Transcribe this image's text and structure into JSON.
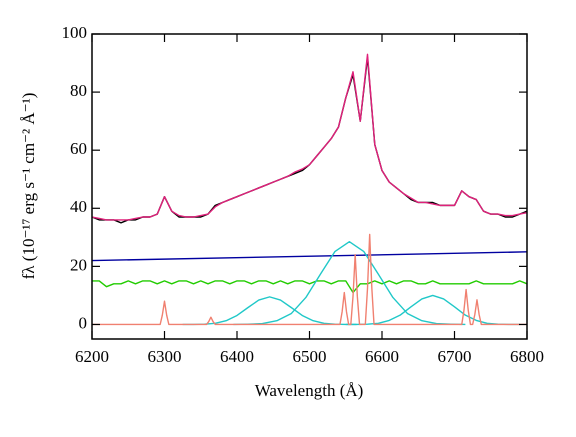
{
  "chart_data": {
    "type": "line",
    "xlabel": "Wavelength (Å)",
    "ylabel": "fλ (10⁻¹⁷ erg s⁻¹ cm⁻² Å⁻¹)",
    "xlim": [
      6200,
      6800
    ],
    "ylim": [
      -5,
      100
    ],
    "xticks": [
      6200,
      6300,
      6400,
      6500,
      6600,
      6700,
      6800
    ],
    "yticks": [
      0,
      20,
      40,
      60,
      80,
      100
    ],
    "x": [
      6200,
      6210,
      6220,
      6230,
      6240,
      6250,
      6260,
      6270,
      6280,
      6290,
      6300,
      6310,
      6320,
      6330,
      6340,
      6350,
      6360,
      6370,
      6380,
      6390,
      6400,
      6410,
      6420,
      6430,
      6440,
      6450,
      6460,
      6470,
      6480,
      6490,
      6500,
      6510,
      6520,
      6530,
      6540,
      6550,
      6560,
      6570,
      6580,
      6590,
      6600,
      6610,
      6620,
      6630,
      6640,
      6650,
      6660,
      6670,
      6680,
      6690,
      6700,
      6710,
      6720,
      6730,
      6740,
      6750,
      6760,
      6770,
      6780,
      6790,
      6800
    ],
    "series": [
      {
        "color": "#000000",
        "values": [
          37,
          36,
          36,
          36,
          35,
          36,
          36,
          37,
          37,
          38,
          44,
          39,
          37,
          37,
          37,
          37,
          38,
          41,
          42,
          43,
          44,
          45,
          46,
          47,
          48,
          49,
          50,
          51,
          52,
          53,
          55,
          58,
          61,
          64,
          68,
          78,
          86,
          70,
          92,
          62,
          53,
          49,
          47,
          45,
          43,
          42,
          42,
          42,
          41,
          41,
          41,
          46,
          44,
          43,
          39,
          38,
          38,
          37,
          37,
          38,
          39
        ]
      },
      {
        "color": "#e0207a",
        "values": [
          37,
          36.5,
          36,
          36,
          36,
          36,
          36.5,
          37,
          37,
          38,
          44,
          39,
          37.5,
          37,
          37,
          37.5,
          38,
          40.5,
          42,
          43,
          44,
          45,
          46,
          47,
          48,
          49,
          50,
          51,
          52.5,
          53.5,
          55,
          58,
          61,
          64,
          68,
          78,
          87,
          70,
          93,
          62,
          53,
          49,
          47,
          45,
          43.5,
          42,
          42,
          41.5,
          41,
          41,
          41,
          46,
          44,
          43,
          39,
          38,
          38,
          37.5,
          37.5,
          38,
          38.5
        ]
      },
      {
        "color": "#0000a0",
        "x": [
          6200,
          6800
        ],
        "values": [
          22,
          25
        ]
      },
      {
        "color": "#22cc00",
        "values": [
          15,
          15,
          13,
          14,
          14,
          15,
          14,
          15,
          15,
          14,
          15,
          14,
          15,
          15,
          14,
          15,
          14,
          15,
          15,
          14,
          15,
          15,
          14,
          15,
          15,
          14,
          15,
          14,
          15,
          15,
          14,
          15,
          15,
          14,
          15,
          15,
          11,
          14,
          14,
          15,
          14,
          15,
          14,
          15,
          15,
          14,
          14,
          15,
          14,
          14,
          14,
          14,
          14,
          15,
          14,
          14,
          14,
          14,
          14,
          15,
          14
        ]
      },
      {
        "color": "#20c8c8",
        "x": [
          6395,
          6415,
          6435,
          6455,
          6475,
          6495,
          6515,
          6535,
          6555,
          6575,
          6595,
          6615,
          6635,
          6655,
          6675,
          6695,
          6715
        ],
        "values": [
          0,
          0.1,
          0.3,
          1.3,
          3.8,
          9.3,
          17.3,
          25.1,
          28.5,
          25.1,
          17.3,
          9.3,
          3.8,
          1.3,
          0.3,
          0.1,
          0
        ]
      },
      {
        "color": "#20c8c8",
        "x": [
          6325,
          6340,
          6355,
          6370,
          6385,
          6400,
          6415,
          6430,
          6445,
          6460,
          6475,
          6490,
          6505,
          6520,
          6535,
          6550,
          6565
        ],
        "values": [
          0,
          0,
          0.1,
          0.4,
          1.3,
          3.1,
          5.8,
          8.4,
          9.5,
          8.4,
          5.8,
          3.1,
          1.3,
          0.4,
          0.1,
          0,
          0
        ]
      },
      {
        "color": "#20c8c8",
        "x": [
          6550,
          6565,
          6580,
          6595,
          6610,
          6625,
          6640,
          6655,
          6670,
          6685,
          6700,
          6715,
          6730,
          6745,
          6760,
          6775,
          6790
        ],
        "values": [
          0,
          0,
          0.1,
          0.4,
          1.4,
          3.2,
          6.1,
          8.8,
          10,
          8.8,
          6.1,
          3.2,
          1.4,
          0.4,
          0.1,
          0,
          0
        ]
      },
      {
        "color": "#f08070",
        "x": [
          6200,
          6294,
          6297,
          6300,
          6303,
          6306,
          6358,
          6361,
          6364,
          6367,
          6370,
          6542,
          6545,
          6548,
          6551,
          6554,
          6557,
          6560,
          6563,
          6566,
          6569,
          6577,
          6580,
          6583,
          6586,
          6589,
          6710,
          6713,
          6716,
          6719,
          6722,
          6725,
          6728,
          6731,
          6734,
          6737,
          6800
        ],
        "values": [
          0,
          0,
          3.2,
          8,
          3.2,
          0,
          0,
          1,
          2.5,
          1,
          0,
          0,
          4.4,
          11,
          4.4,
          0,
          0,
          9.6,
          24,
          9.6,
          0,
          0,
          12.4,
          31,
          12.4,
          0,
          0,
          4.8,
          12,
          4.8,
          0,
          0,
          3.4,
          8.5,
          3.4,
          0,
          0
        ]
      }
    ]
  }
}
